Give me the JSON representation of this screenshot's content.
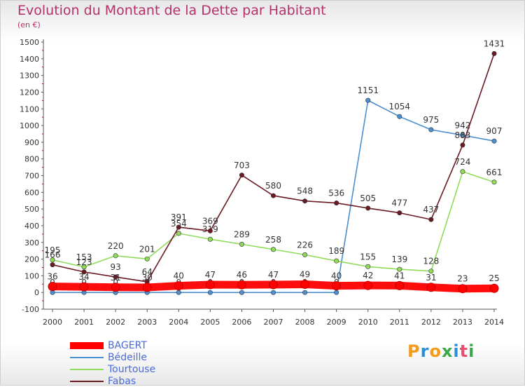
{
  "chart_data": {
    "type": "line",
    "title": "Evolution du Montant de la Dette par Habitant",
    "subtitle": "(en €)",
    "categories": [
      "2000",
      "2001",
      "2002",
      "2003",
      "2004",
      "2005",
      "2006",
      "2007",
      "2008",
      "2009",
      "2010",
      "2011",
      "2012",
      "2013",
      "2014"
    ],
    "ylim": [
      -100,
      1500
    ],
    "yticks": [
      -100,
      0,
      100,
      200,
      300,
      400,
      500,
      600,
      700,
      800,
      900,
      1000,
      1100,
      1200,
      1300,
      1400,
      1500
    ],
    "grid": false,
    "legend_position": "bottom-left",
    "series": [
      {
        "name": "Bédeille",
        "color": "#4a8fd0",
        "values": [
          0,
          0,
          0,
          0,
          0,
          0,
          0,
          0,
          0,
          0,
          1151,
          1054,
          975,
          942,
          907
        ],
        "labels": [
          "0",
          "0",
          "0",
          "0",
          "0",
          "0",
          "0",
          "0",
          "0",
          "0",
          "1151",
          "1054",
          "975",
          "942",
          "907"
        ]
      },
      {
        "name": "Tourtouse",
        "color": "#90dc5a",
        "values": [
          195,
          153,
          220,
          201,
          354,
          319,
          289,
          258,
          226,
          189,
          155,
          139,
          128,
          724,
          661
        ],
        "labels": [
          "195",
          "153",
          "220",
          "201",
          "354",
          "319",
          "289",
          "258",
          "226",
          "189",
          "155",
          "139",
          "128",
          "724",
          "661"
        ]
      },
      {
        "name": "Fabas",
        "color": "#6b1a24",
        "values": [
          166,
          123,
          93,
          64,
          391,
          369,
          703,
          580,
          548,
          536,
          505,
          477,
          437,
          883,
          1431
        ],
        "labels": [
          "166",
          "123",
          "93",
          "64",
          "391",
          "369",
          "703",
          "580",
          "548",
          "536",
          "505",
          "477",
          "437",
          "883",
          "1431"
        ]
      },
      {
        "name": "BAGERT",
        "color": "#ff0000",
        "values": [
          36,
          34,
          31,
          30,
          40,
          47,
          46,
          47,
          49,
          40,
          42,
          41,
          31,
          23,
          25
        ],
        "labels": [
          "36",
          "34",
          "31",
          "30",
          "40",
          "47",
          "46",
          "47",
          "49",
          "40",
          "42",
          "41",
          "31",
          "23",
          "25"
        ]
      }
    ]
  },
  "legend": {
    "items": [
      {
        "label": "BAGERT",
        "color": "#ff0000"
      },
      {
        "label": "Bédeille",
        "color": "#4a8fd0"
      },
      {
        "label": "Tourtouse",
        "color": "#90dc5a"
      },
      {
        "label": "Fabas",
        "color": "#6b1a24"
      }
    ]
  },
  "logo": {
    "text": "Proxiti",
    "colors": [
      "#f29b1d",
      "#2c8fd6",
      "#f29b1d",
      "#3aa84a",
      "#2c8fd6",
      "#e94f6c",
      "#3aa84a"
    ]
  }
}
